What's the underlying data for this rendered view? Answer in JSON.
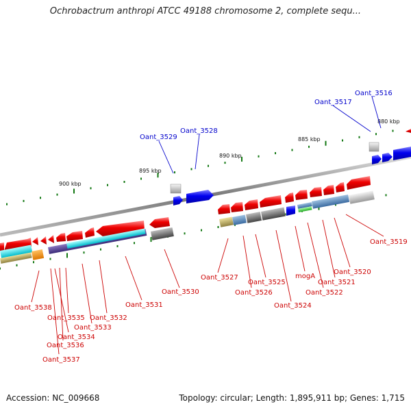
{
  "title": "Ochrobactrum anthropi ATCC 49188 chromosome 2, complete sequ...",
  "footer": {
    "accession": "Accession: NC_009668",
    "summary": "Topology: circular; Length: 1,895,911 bp; Genes: 1,715"
  },
  "scale_ticks": [
    "900 kbp",
    "895 kbp",
    "890 kbp",
    "885 kbp",
    "880 kbp"
  ],
  "upper_labels": [
    "Oant_3529",
    "Oant_3528",
    "Oant_3517",
    "Oant_3516"
  ],
  "lower_labels": [
    "Oant_3538",
    "Oant_3535",
    "Oant_3536",
    "Oant_3537",
    "Oant_3534",
    "Oant_3533",
    "Oant_3532",
    "Oant_3531",
    "Oant_3530",
    "Oant_3527",
    "Oant_3526",
    "Oant_3525",
    "Oant_3524",
    "mogA",
    "Oant_3522",
    "Oant_3521",
    "Oant_3520",
    "Oant_3519"
  ],
  "colors": {
    "forward_gene": "#ee0000",
    "reverse_gene": "#0000ee",
    "label_red": "#cc0000",
    "label_blue": "#0000cc",
    "backbone": "#888888",
    "tick": "#117711"
  }
}
